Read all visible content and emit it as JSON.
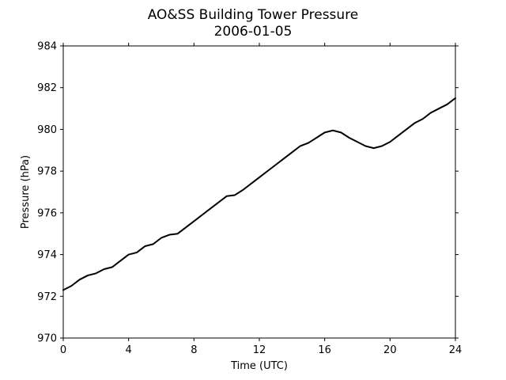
{
  "chart_data": {
    "type": "line",
    "title": "AO&SS Building Tower Pressure",
    "subtitle": "2006-01-05",
    "xlabel": "Time (UTC)",
    "ylabel": "Pressure (hPa)",
    "xlim": [
      0,
      24
    ],
    "ylim": [
      970,
      984
    ],
    "xticks": [
      0,
      4,
      8,
      12,
      16,
      20,
      24
    ],
    "yticks": [
      970,
      972,
      974,
      976,
      978,
      980,
      982,
      984
    ],
    "grid": false,
    "series": [
      {
        "color": "#000000",
        "x": [
          0,
          0.5,
          1,
          1.5,
          2,
          2.5,
          3,
          3.5,
          4,
          4.5,
          5,
          5.5,
          6,
          6.5,
          7,
          7.5,
          8,
          8.5,
          9,
          9.5,
          10,
          10.5,
          11,
          11.5,
          12,
          12.5,
          13,
          13.5,
          14,
          14.5,
          15,
          15.5,
          16,
          16.5,
          17,
          17.5,
          18,
          18.5,
          19,
          19.5,
          20,
          20.5,
          21,
          21.5,
          22,
          22.5,
          23,
          23.5,
          24
        ],
        "y": [
          972.3,
          972.5,
          972.8,
          973.0,
          973.1,
          973.3,
          973.4,
          973.7,
          974.0,
          974.1,
          974.4,
          974.5,
          974.8,
          974.95,
          975.0,
          975.3,
          975.6,
          975.9,
          976.2,
          976.5,
          976.8,
          976.85,
          977.1,
          977.4,
          977.7,
          978.0,
          978.3,
          978.6,
          978.9,
          979.2,
          979.35,
          979.6,
          979.85,
          979.95,
          979.85,
          979.6,
          979.4,
          979.2,
          979.1,
          979.2,
          979.4,
          979.7,
          980.0,
          980.3,
          980.5,
          980.8,
          981.0,
          981.2,
          981.5
        ]
      }
    ]
  }
}
